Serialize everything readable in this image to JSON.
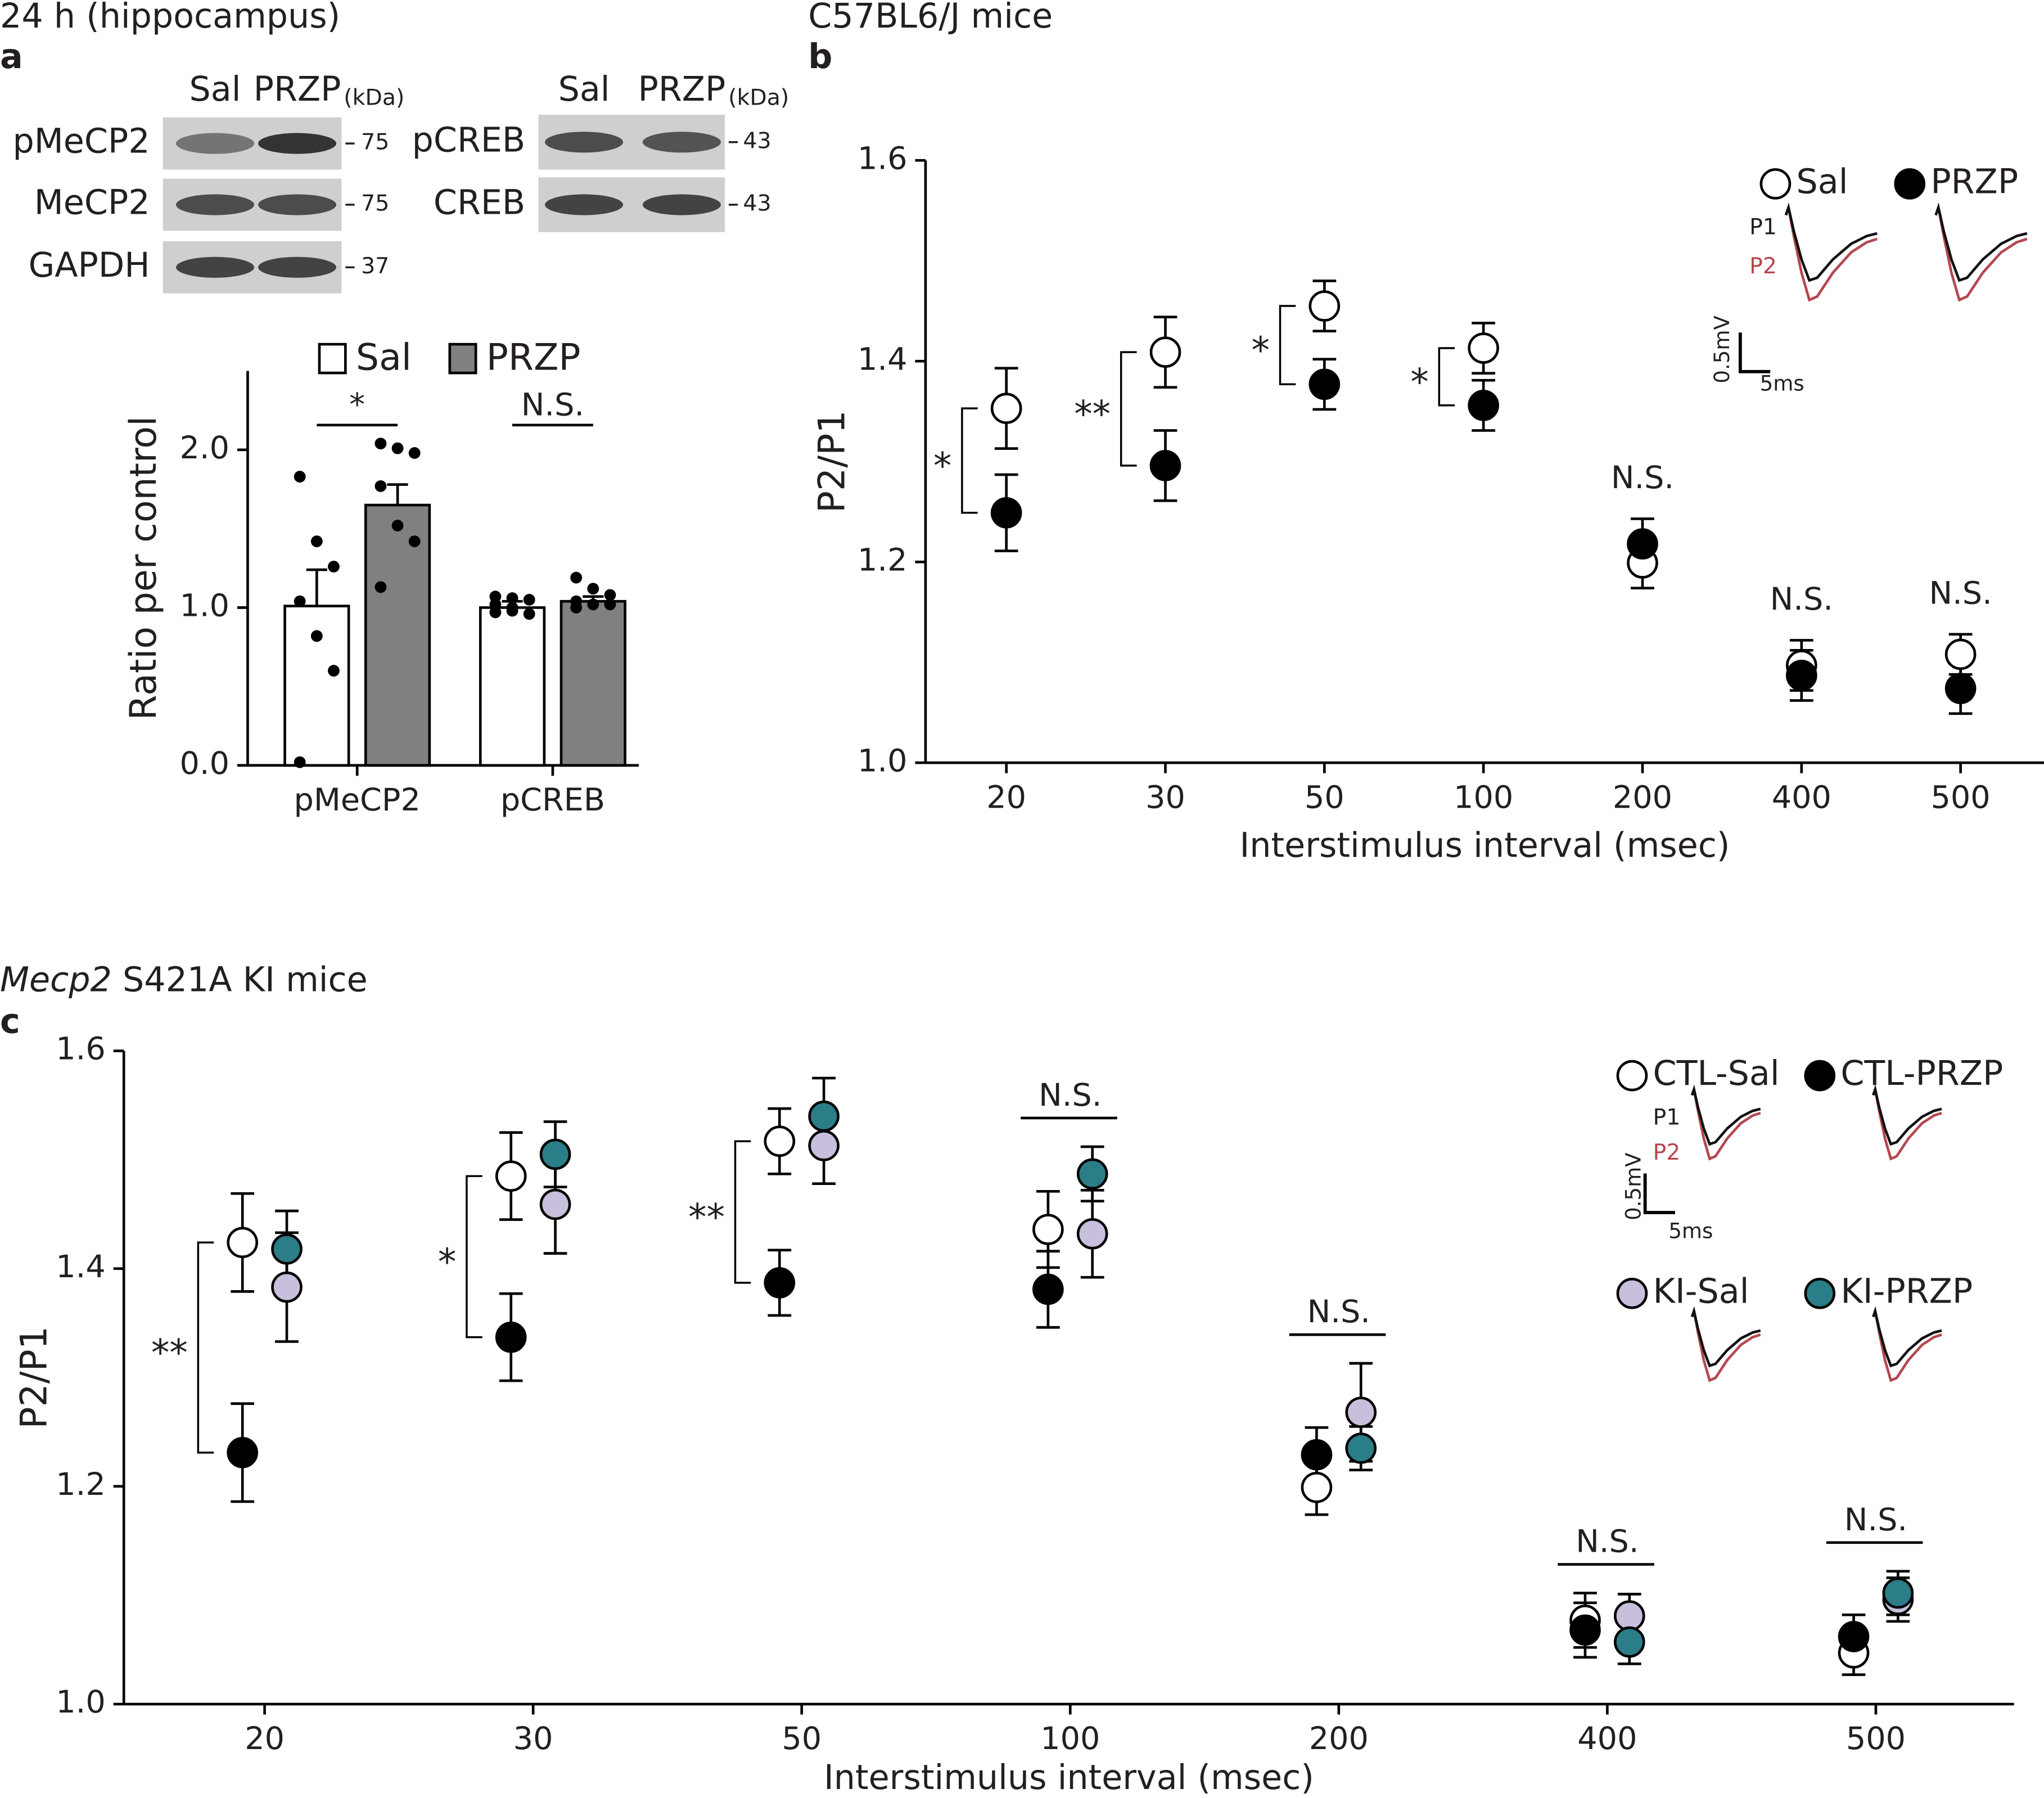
{
  "header": {
    "title": "24 h (hippocampus)",
    "panel": "a"
  },
  "blots": [
    {
      "lanes": [
        "Sal",
        "PRZP"
      ],
      "unit": "(kDa)",
      "rows": [
        {
          "label": "pMeCP2",
          "kda": 75
        },
        {
          "label": "MeCP2",
          "kda": 75
        },
        {
          "label": "GAPDH",
          "kda": 37
        }
      ]
    },
    {
      "lanes": [
        "Sal",
        "PRZP"
      ],
      "unit": "(kDa)",
      "rows": [
        {
          "label": "pCREB",
          "kda": 43
        },
        {
          "label": "CREB",
          "kda": 43
        }
      ]
    }
  ],
  "chart_data": [
    {
      "type": "bar",
      "ylabel": "Ratio per control",
      "categories": [
        "pMeCP2",
        "pCREB"
      ],
      "ylim": [
        0,
        2.5
      ],
      "yticks": [
        {
          "value": 0,
          "label": "0.0"
        },
        {
          "value": 1,
          "label": "1.0"
        },
        {
          "value": 2,
          "label": "2.0"
        }
      ],
      "series": [
        {
          "name": "Sal",
          "color": "#ffffff",
          "values": [
            1.01,
            1.0
          ],
          "errors": [
            0.23,
            0.04
          ],
          "points": [
            [
              1.83,
              1.42,
              1.26,
              1.04,
              0.82,
              0.6,
              0.02
            ],
            [
              1.07,
              1.06,
              1.05,
              1.02,
              0.98,
              0.96,
              0.97,
              1.0
            ]
          ]
        },
        {
          "name": "PRZP",
          "color": "#808080",
          "values": [
            1.65,
            1.04
          ],
          "errors": [
            0.13,
            0.03
          ],
          "points": [
            [
              2.04,
              2.01,
              1.98,
              1.77,
              1.52,
              1.42,
              1.13
            ],
            [
              1.19,
              1.12,
              1.08,
              1.04,
              1.02,
              1.02,
              1.0
            ]
          ]
        }
      ],
      "annotations": [
        {
          "text": "*",
          "style": "bar"
        },
        {
          "text": "N.S.",
          "style": "bar"
        }
      ]
    },
    {
      "type": "scatter",
      "panel": "b",
      "title": "C57BL6/J mice",
      "xlabel": "Interstimulus interval (msec)",
      "ylabel": "P2/P1",
      "categories": [
        "20",
        "30",
        "50",
        "100",
        "200",
        "400",
        "500"
      ],
      "ylim": [
        1.0,
        1.6
      ],
      "yticks": [
        {
          "value": 1,
          "label": "1.0"
        },
        {
          "value": 1.2,
          "label": "1.2"
        },
        {
          "value": 1.4,
          "label": "1.4"
        },
        {
          "value": 1.6,
          "label": "1.6"
        }
      ],
      "series": [
        {
          "name": "Sal",
          "color": "#ffffff",
          "values": [
            1.353,
            1.409,
            1.455,
            1.413,
            1.199,
            1.097,
            1.108
          ],
          "errors": [
            0.04,
            0.035,
            0.025,
            0.025,
            0.025,
            0.025,
            0.02
          ]
        },
        {
          "name": "PRZP",
          "color": "#000000",
          "values": [
            1.249,
            1.296,
            1.377,
            1.356,
            1.218,
            1.087,
            1.074
          ],
          "errors": [
            0.038,
            0.035,
            0.025,
            0.025,
            0.025,
            0.025,
            0.025
          ]
        }
      ],
      "annotations": [
        {
          "text": "*",
          "style": "bracket"
        },
        {
          "text": "**",
          "style": "bracket"
        },
        {
          "text": "*",
          "style": "bracket"
        },
        {
          "text": "*",
          "style": "bracket"
        },
        {
          "text": "N.S.",
          "style": "text"
        },
        {
          "text": "N.S.",
          "style": "text"
        },
        {
          "text": "N.S.",
          "style": "text"
        }
      ],
      "inset": {
        "p1": "P1",
        "p2": "P2",
        "scale_y": "0.5mV",
        "scale_x": "5ms"
      }
    },
    {
      "type": "scatter",
      "panel": "c",
      "title_italic": "Mecp2",
      "title": "S421A KI mice",
      "xlabel": "Interstimulus interval (msec)",
      "ylabel": "P2/P1",
      "categories": [
        "20",
        "30",
        "50",
        "100",
        "200",
        "400",
        "500"
      ],
      "ylim": [
        1.0,
        1.6
      ],
      "yticks": [
        {
          "value": 1,
          "label": "1.0"
        },
        {
          "value": 1.2,
          "label": "1.2"
        },
        {
          "value": 1.4,
          "label": "1.4"
        },
        {
          "value": 1.6,
          "label": "1.6"
        }
      ],
      "series": [
        {
          "name": "CTL-Sal",
          "color": "#ffffff",
          "values": [
            1.424,
            1.485,
            1.517,
            1.436,
            1.199,
            1.077,
            1.047
          ],
          "errors": [
            0.045,
            0.04,
            0.03,
            0.035,
            0.025,
            0.025,
            0.02
          ]
        },
        {
          "name": "CTL-PRZP",
          "color": "#000000",
          "values": [
            1.231,
            1.337,
            1.387,
            1.381,
            1.229,
            1.068,
            1.062
          ],
          "errors": [
            0.045,
            0.04,
            0.03,
            0.035,
            0.025,
            0.025,
            0.02
          ]
        },
        {
          "name": "KI-Sal",
          "color": "#c8bfdc",
          "values": [
            1.383,
            1.459,
            1.513,
            1.432,
            1.268,
            1.081,
            1.096
          ],
          "errors": [
            0.05,
            0.045,
            0.035,
            0.04,
            0.045,
            0.02,
            0.02
          ]
        },
        {
          "name": "KI-PRZP",
          "color": "#2b7d88",
          "values": [
            1.418,
            1.505,
            1.54,
            1.487,
            1.235,
            1.057,
            1.102
          ],
          "errors": [
            0.035,
            0.03,
            0.035,
            0.025,
            0.02,
            0.02,
            0.02
          ]
        }
      ],
      "annotations": [
        {
          "text": "**",
          "style": "bracket"
        },
        {
          "text": "*",
          "style": "bracket"
        },
        {
          "text": "**",
          "style": "bracket"
        },
        {
          "text": "N.S.",
          "style": "bar"
        },
        {
          "text": "N.S.",
          "style": "bar"
        },
        {
          "text": "N.S.",
          "style": "bar"
        },
        {
          "text": "N.S.",
          "style": "bar"
        }
      ],
      "inset": {
        "p1": "P1",
        "p2": "P2",
        "scale_y": "0.5mV",
        "scale_x": "5ms"
      }
    }
  ]
}
